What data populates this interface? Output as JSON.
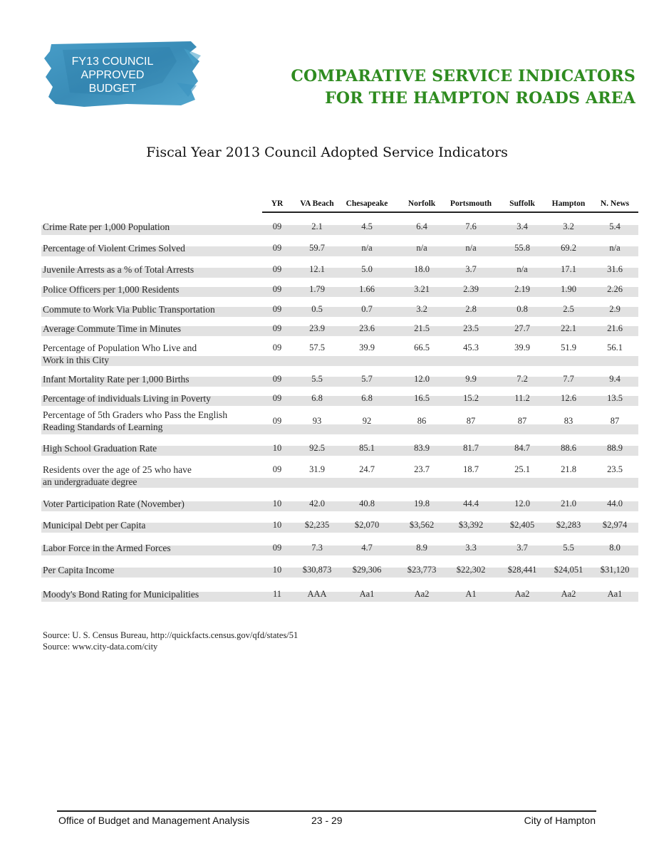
{
  "badge": {
    "line1": "FY13 COUNCIL",
    "line2": "APPROVED",
    "line3": "BUDGET"
  },
  "title": {
    "line1": "COMPARATIVE SERVICE INDICATORS",
    "line2": "FOR THE HAMPTON ROADS AREA"
  },
  "subtitle": "Fiscal Year 2013 Council Adopted Service Indicators",
  "columns": [
    "YR",
    "VA Beach",
    "Chesapeake",
    "Norfolk",
    "Portsmouth",
    "Suffolk",
    "Hampton",
    "N. News"
  ],
  "rows": [
    {
      "label": [
        "Crime Rate per 1,000 Population"
      ],
      "values": [
        "09",
        "2.1",
        "4.5",
        "6.4",
        "7.6",
        "3.4",
        "3.2",
        "5.4"
      ]
    },
    {
      "label": [
        "Percentage of Violent Crimes Solved"
      ],
      "values": [
        "09",
        "59.7",
        "n/a",
        "n/a",
        "n/a",
        "55.8",
        "69.2",
        "n/a"
      ]
    },
    {
      "label": [
        "Juvenile Arrests as a % of Total Arrests"
      ],
      "values": [
        "09",
        "12.1",
        "5.0",
        "18.0",
        "3.7",
        "n/a",
        "17.1",
        "31.6"
      ]
    },
    {
      "label": [
        "Police Officers per 1,000 Residents"
      ],
      "values": [
        "09",
        "1.79",
        "1.66",
        "3.21",
        "2.39",
        "2.19",
        "1.90",
        "2.26"
      ]
    },
    {
      "label": [
        "Commute to Work Via Public Transportation"
      ],
      "values": [
        "09",
        "0.5",
        "0.7",
        "3.2",
        "2.8",
        "0.8",
        "2.5",
        "2.9"
      ]
    },
    {
      "label": [
        "Average Commute Time in Minutes"
      ],
      "values": [
        "09",
        "23.9",
        "23.6",
        "21.5",
        "23.5",
        "27.7",
        "22.1",
        "21.6"
      ]
    },
    {
      "label": [
        "Percentage of Population Who Live and",
        "Work in this City"
      ],
      "values": [
        "09",
        "57.5",
        "39.9",
        "66.5",
        "45.3",
        "39.9",
        "51.9",
        "56.1"
      ]
    },
    {
      "label": [
        "Infant Mortality Rate per 1,000 Births"
      ],
      "values": [
        "09",
        "5.5",
        "5.7",
        "12.0",
        "9.9",
        "7.2",
        "7.7",
        "9.4"
      ]
    },
    {
      "label": [
        "Percentage of individuals Living in Poverty"
      ],
      "values": [
        "09",
        "6.8",
        "6.8",
        "16.5",
        "15.2",
        "11.2",
        "12.6",
        "13.5"
      ]
    },
    {
      "label": [
        "Percentage of 5th Graders who Pass the English",
        "Reading Standards of Learning"
      ],
      "values": [
        "09",
        "93",
        "92",
        "86",
        "87",
        "87",
        "83",
        "87"
      ]
    },
    {
      "label": [
        "High School Graduation Rate"
      ],
      "values": [
        "10",
        "92.5",
        "85.1",
        "83.9",
        "81.7",
        "84.7",
        "88.6",
        "88.9"
      ]
    },
    {
      "label": [
        "Residents over the age of 25 who have",
        "an undergraduate degree"
      ],
      "values": [
        "09",
        "31.9",
        "24.7",
        "23.7",
        "18.7",
        "25.1",
        "21.8",
        "23.5"
      ]
    },
    {
      "label": [
        "Voter Participation Rate (November)"
      ],
      "values": [
        "10",
        "42.0",
        "40.8",
        "19.8",
        "44.4",
        "12.0",
        "21.0",
        "44.0"
      ]
    },
    {
      "label": [
        "Municipal Debt per Capita"
      ],
      "values": [
        "10",
        "$2,235",
        "$2,070",
        "$3,562",
        "$3,392",
        "$2,405",
        "$2,283",
        "$2,974"
      ]
    },
    {
      "label": [
        "Labor Force in the Armed Forces"
      ],
      "values": [
        "09",
        "7.3",
        "4.7",
        "8.9",
        "3.3",
        "3.7",
        "5.5",
        "8.0"
      ]
    },
    {
      "label": [
        "Per Capita Income"
      ],
      "values": [
        "10",
        "$30,873",
        "$29,306",
        "$23,773",
        "$22,302",
        "$28,441",
        "$24,051",
        "$31,120"
      ]
    },
    {
      "label": [
        "Moody's Bond Rating for Municipalities"
      ],
      "values": [
        "11",
        "AAA",
        "Aa1",
        "Aa2",
        "A1",
        "Aa2",
        "Aa2",
        "Aa1"
      ]
    }
  ],
  "sources": [
    "Source: U. S. Census Bureau, http://quickfacts.census.gov/qfd/states/51",
    "Source: www.city-data.com/city"
  ],
  "footer": {
    "office": "Office of Budget and Management Analysis",
    "page": "23 - 29",
    "city": "City of Hampton"
  },
  "colors": {
    "title_green": "#2e8b1f",
    "badge_blue": "#2f86b3",
    "row_shade": "#e2e2e2"
  }
}
